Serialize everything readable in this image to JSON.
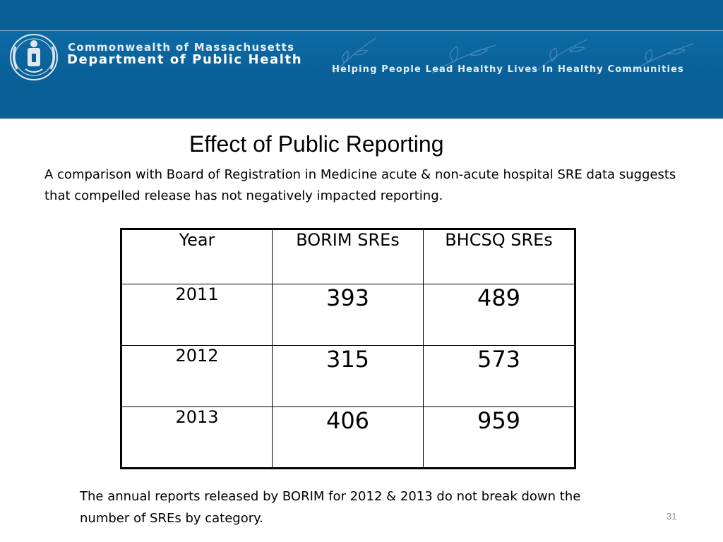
{
  "header": {
    "org_line1": "Commonwealth of Massachusetts",
    "org_line2": "Department of Public Health",
    "tagline": "Helping People Lead Healthy Lives In Healthy Communities",
    "brand_color": "#0a5f97",
    "seal_icon": "state-seal-icon",
    "decoration_icon": "leaf-branch-icon"
  },
  "slide": {
    "title": "Effect of Public Reporting",
    "subtitle": "A comparison with Board of Registration in Medicine acute & non-acute hospital SRE data suggests that compelled release has not negatively impacted reporting.",
    "table": {
      "headers": [
        "Year",
        "BORIM SREs",
        "BHCSQ SREs"
      ],
      "rows": [
        [
          "2011",
          "393",
          "489"
        ],
        [
          "2012",
          "315",
          "573"
        ],
        [
          "2013",
          "406",
          "959"
        ]
      ]
    },
    "footnote": "The annual reports released by BORIM for 2012 & 2013 do not break down the number of SREs by category.",
    "page_number": "31"
  }
}
